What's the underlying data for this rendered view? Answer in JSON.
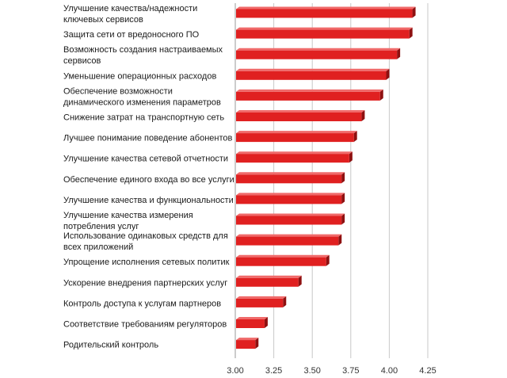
{
  "chart_data": {
    "type": "bar",
    "orientation": "horizontal",
    "title": "",
    "xlabel": "",
    "ylabel": "",
    "categories": [
      [
        "Улучшение качества/надежности",
        "ключевых сервисов"
      ],
      [
        "Защита сети от вредоносного ПО"
      ],
      [
        "Возможность создания настраиваемых",
        "сервисов"
      ],
      [
        "Уменьшение операционных расходов"
      ],
      [
        "Обеспечение возможности",
        "динамического изменения параметров"
      ],
      [
        "Снижение затрат на транспортную сеть"
      ],
      [
        "Лучшее понимание поведение абонентов"
      ],
      [
        "Улучшение качества сетевой отчетности"
      ],
      [
        "Обеспечение единого входа во все услуги"
      ],
      [
        "Улучшение качества и функциональности"
      ],
      [
        "Улучшение качества измерения",
        "потребления услуг"
      ],
      [
        "Использование одинаковых средств для",
        "всех приложений"
      ],
      [
        "Упрощение исполнения сетевых политик"
      ],
      [
        "Ускорение внедрения партнерских услуг"
      ],
      [
        "Контроль доступа к услугам партнеров"
      ],
      [
        "Соответствие требованиям регуляторов"
      ],
      [
        "Родительский контроль"
      ]
    ],
    "values": [
      4.15,
      4.13,
      4.05,
      3.98,
      3.94,
      3.82,
      3.77,
      3.74,
      3.69,
      3.69,
      3.69,
      3.67,
      3.59,
      3.41,
      3.31,
      3.19,
      3.13
    ],
    "xlim": [
      3.0,
      4.25
    ],
    "xticks": [
      "3.00",
      "3.25",
      "3.50",
      "3.75",
      "4.00",
      "4.25"
    ],
    "grid": true,
    "legend": "none",
    "colors": {
      "bar": "#e02020",
      "bar_side": "#8e1010",
      "bar_top": "#f06a6a",
      "grid": "#c8c8c8",
      "axis": "#999999"
    }
  }
}
